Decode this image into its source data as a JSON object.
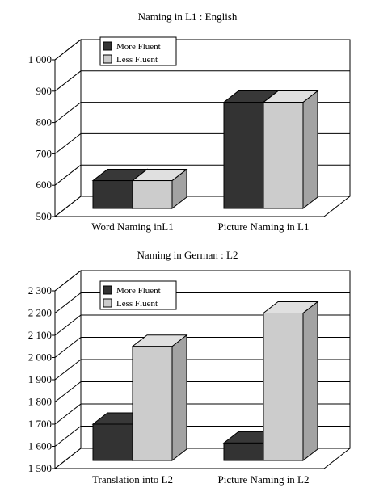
{
  "chart_data": [
    {
      "type": "bar",
      "title": "Naming in L1 : English",
      "categories": [
        "Word Naming inL1",
        "Picture Naming in L1"
      ],
      "series": [
        {
          "name": "More Fluent",
          "values": [
            650,
            900
          ],
          "color": "#333333"
        },
        {
          "name": "Less Fluent",
          "values": [
            650,
            900
          ],
          "color": "#cccccc"
        }
      ],
      "ylim": [
        500,
        1000
      ],
      "yticks": [
        500,
        600,
        700,
        800,
        900,
        1000
      ],
      "ytick_labels": [
        "500",
        "600",
        "700",
        "800",
        "900",
        "1 000"
      ],
      "grid": true,
      "legend_position": "top-left",
      "style": "3d"
    },
    {
      "type": "bar",
      "title": "Naming in German : L2",
      "categories": [
        "Translation  into  L2",
        "Picture Naming in L2"
      ],
      "series": [
        {
          "name": "More Fluent",
          "values": [
            1750,
            1665
          ],
          "color": "#333333"
        },
        {
          "name": "Less Fluent",
          "values": [
            2100,
            2250
          ],
          "color": "#cccccc"
        }
      ],
      "ylim": [
        1500,
        2300
      ],
      "yticks": [
        1500,
        1600,
        1700,
        1800,
        1900,
        2000,
        2100,
        2200,
        2300
      ],
      "ytick_labels": [
        "1 500",
        "1 600",
        "1 700",
        "1 800",
        "1 900",
        "2 000",
        "2 100",
        "2 200",
        "2 300"
      ],
      "grid": true,
      "legend_position": "top-left",
      "style": "3d"
    }
  ]
}
